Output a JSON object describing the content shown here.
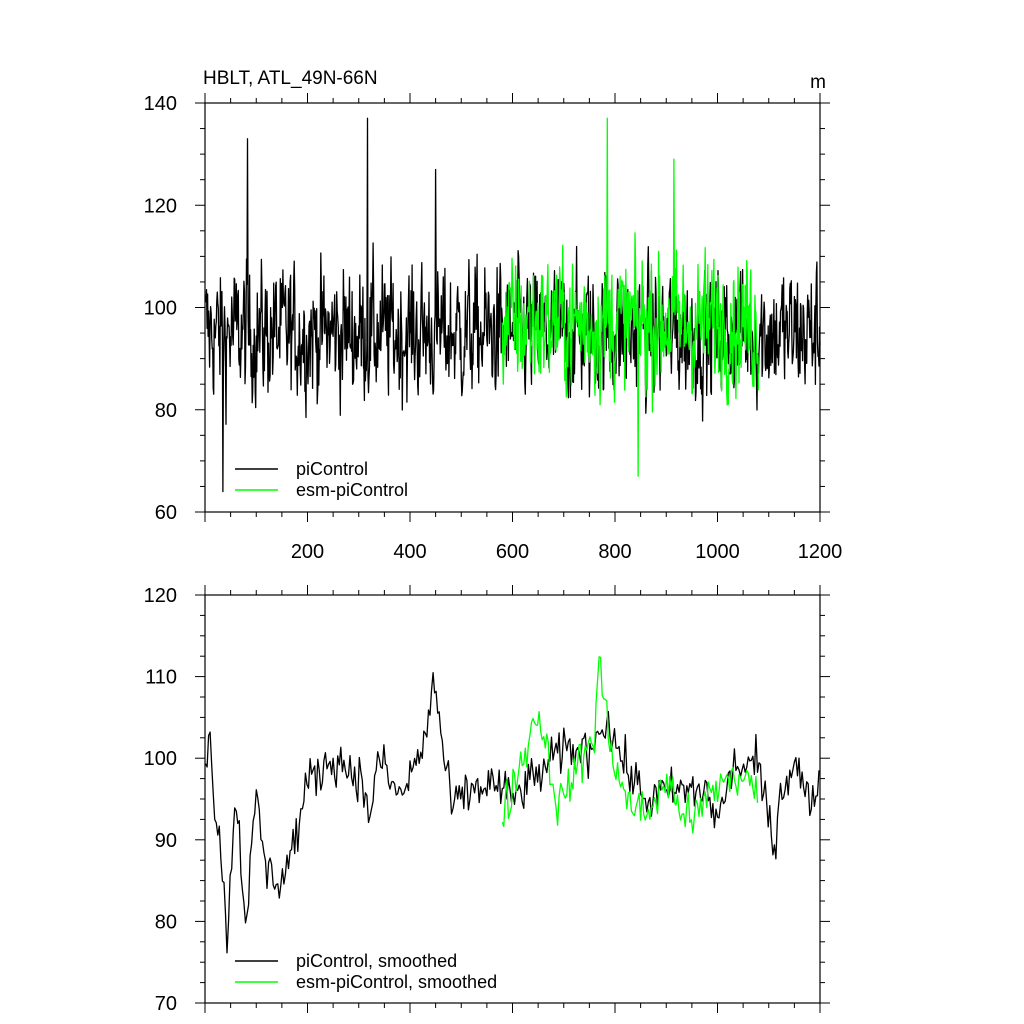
{
  "chart_data": [
    {
      "type": "line",
      "title": "HBLT, ATL_49N-66N",
      "units": "m",
      "xlim": [
        0,
        1200
      ],
      "ylim": [
        60,
        140
      ],
      "xticks": [
        200,
        400,
        600,
        800,
        1000,
        1200
      ],
      "yticks": [
        60,
        80,
        100,
        120,
        140
      ],
      "legend_position": "bottom-left",
      "series": [
        {
          "name": "piControl",
          "color": "#000000",
          "x_range": [
            1,
            1200
          ],
          "mean": 95,
          "amplitude": 11,
          "peaks": [
            [
              83,
              133
            ],
            [
              317,
              137
            ],
            [
              35,
              64
            ],
            [
              450,
              127
            ]
          ]
        },
        {
          "name": "esm-piControl",
          "color": "#00ff00",
          "x_range": [
            580,
            1080
          ],
          "mean": 97,
          "amplitude": 11,
          "peaks": [
            [
              785,
              137
            ],
            [
              915,
              129
            ],
            [
              845,
              67
            ]
          ]
        }
      ]
    },
    {
      "type": "line",
      "title": "",
      "xlim": [
        0,
        1200
      ],
      "ylim": [
        70,
        120
      ],
      "xticks": [
        200,
        400,
        600,
        800,
        1000,
        1200
      ],
      "yticks": [
        70,
        80,
        90,
        100,
        110,
        120
      ],
      "show_x_labels": false,
      "legend_position": "bottom-left",
      "series": [
        {
          "name": "piControl, smoothed",
          "color": "#000000",
          "x_range": [
            1,
            1200
          ],
          "mean": 95.5,
          "anchors": [
            [
              1,
              99
            ],
            [
              8,
              104
            ],
            [
              18,
              95
            ],
            [
              35,
              86
            ],
            [
              42,
              77.5
            ],
            [
              60,
              96
            ],
            [
              80,
              80
            ],
            [
              100,
              95
            ],
            [
              120,
              86
            ],
            [
              150,
              85
            ],
            [
              180,
              91
            ],
            [
              200,
              97
            ],
            [
              250,
              100
            ],
            [
              300,
              98
            ],
            [
              320,
              93
            ],
            [
              340,
              100
            ],
            [
              380,
              95
            ],
            [
              430,
              102
            ],
            [
              445,
              110
            ],
            [
              480,
              94
            ],
            [
              520,
              96
            ],
            [
              560,
              97
            ],
            [
              600,
              95
            ],
            [
              650,
              98
            ],
            [
              700,
              101
            ],
            [
              750,
              101
            ],
            [
              780,
              105
            ],
            [
              820,
              99
            ],
            [
              860,
              95
            ],
            [
              920,
              96
            ],
            [
              980,
              96
            ],
            [
              1000,
              92
            ],
            [
              1030,
              99
            ],
            [
              1080,
              99
            ],
            [
              1110,
              89
            ],
            [
              1120,
              95
            ],
            [
              1150,
              100
            ],
            [
              1180,
              94
            ],
            [
              1200,
              98
            ]
          ]
        },
        {
          "name": "esm-piControl, smoothed",
          "color": "#00ff00",
          "x_range": [
            580,
            1080
          ],
          "mean": 97,
          "anchors": [
            [
              580,
              93
            ],
            [
              620,
              100
            ],
            [
              650,
              106
            ],
            [
              690,
              94
            ],
            [
              720,
              98
            ],
            [
              760,
              103
            ],
            [
              768,
              112
            ],
            [
              790,
              102
            ],
            [
              820,
              95
            ],
            [
              860,
              93
            ],
            [
              900,
              97
            ],
            [
              950,
              92
            ],
            [
              990,
              96
            ],
            [
              1030,
              98
            ],
            [
              1080,
              96
            ]
          ]
        }
      ]
    }
  ]
}
